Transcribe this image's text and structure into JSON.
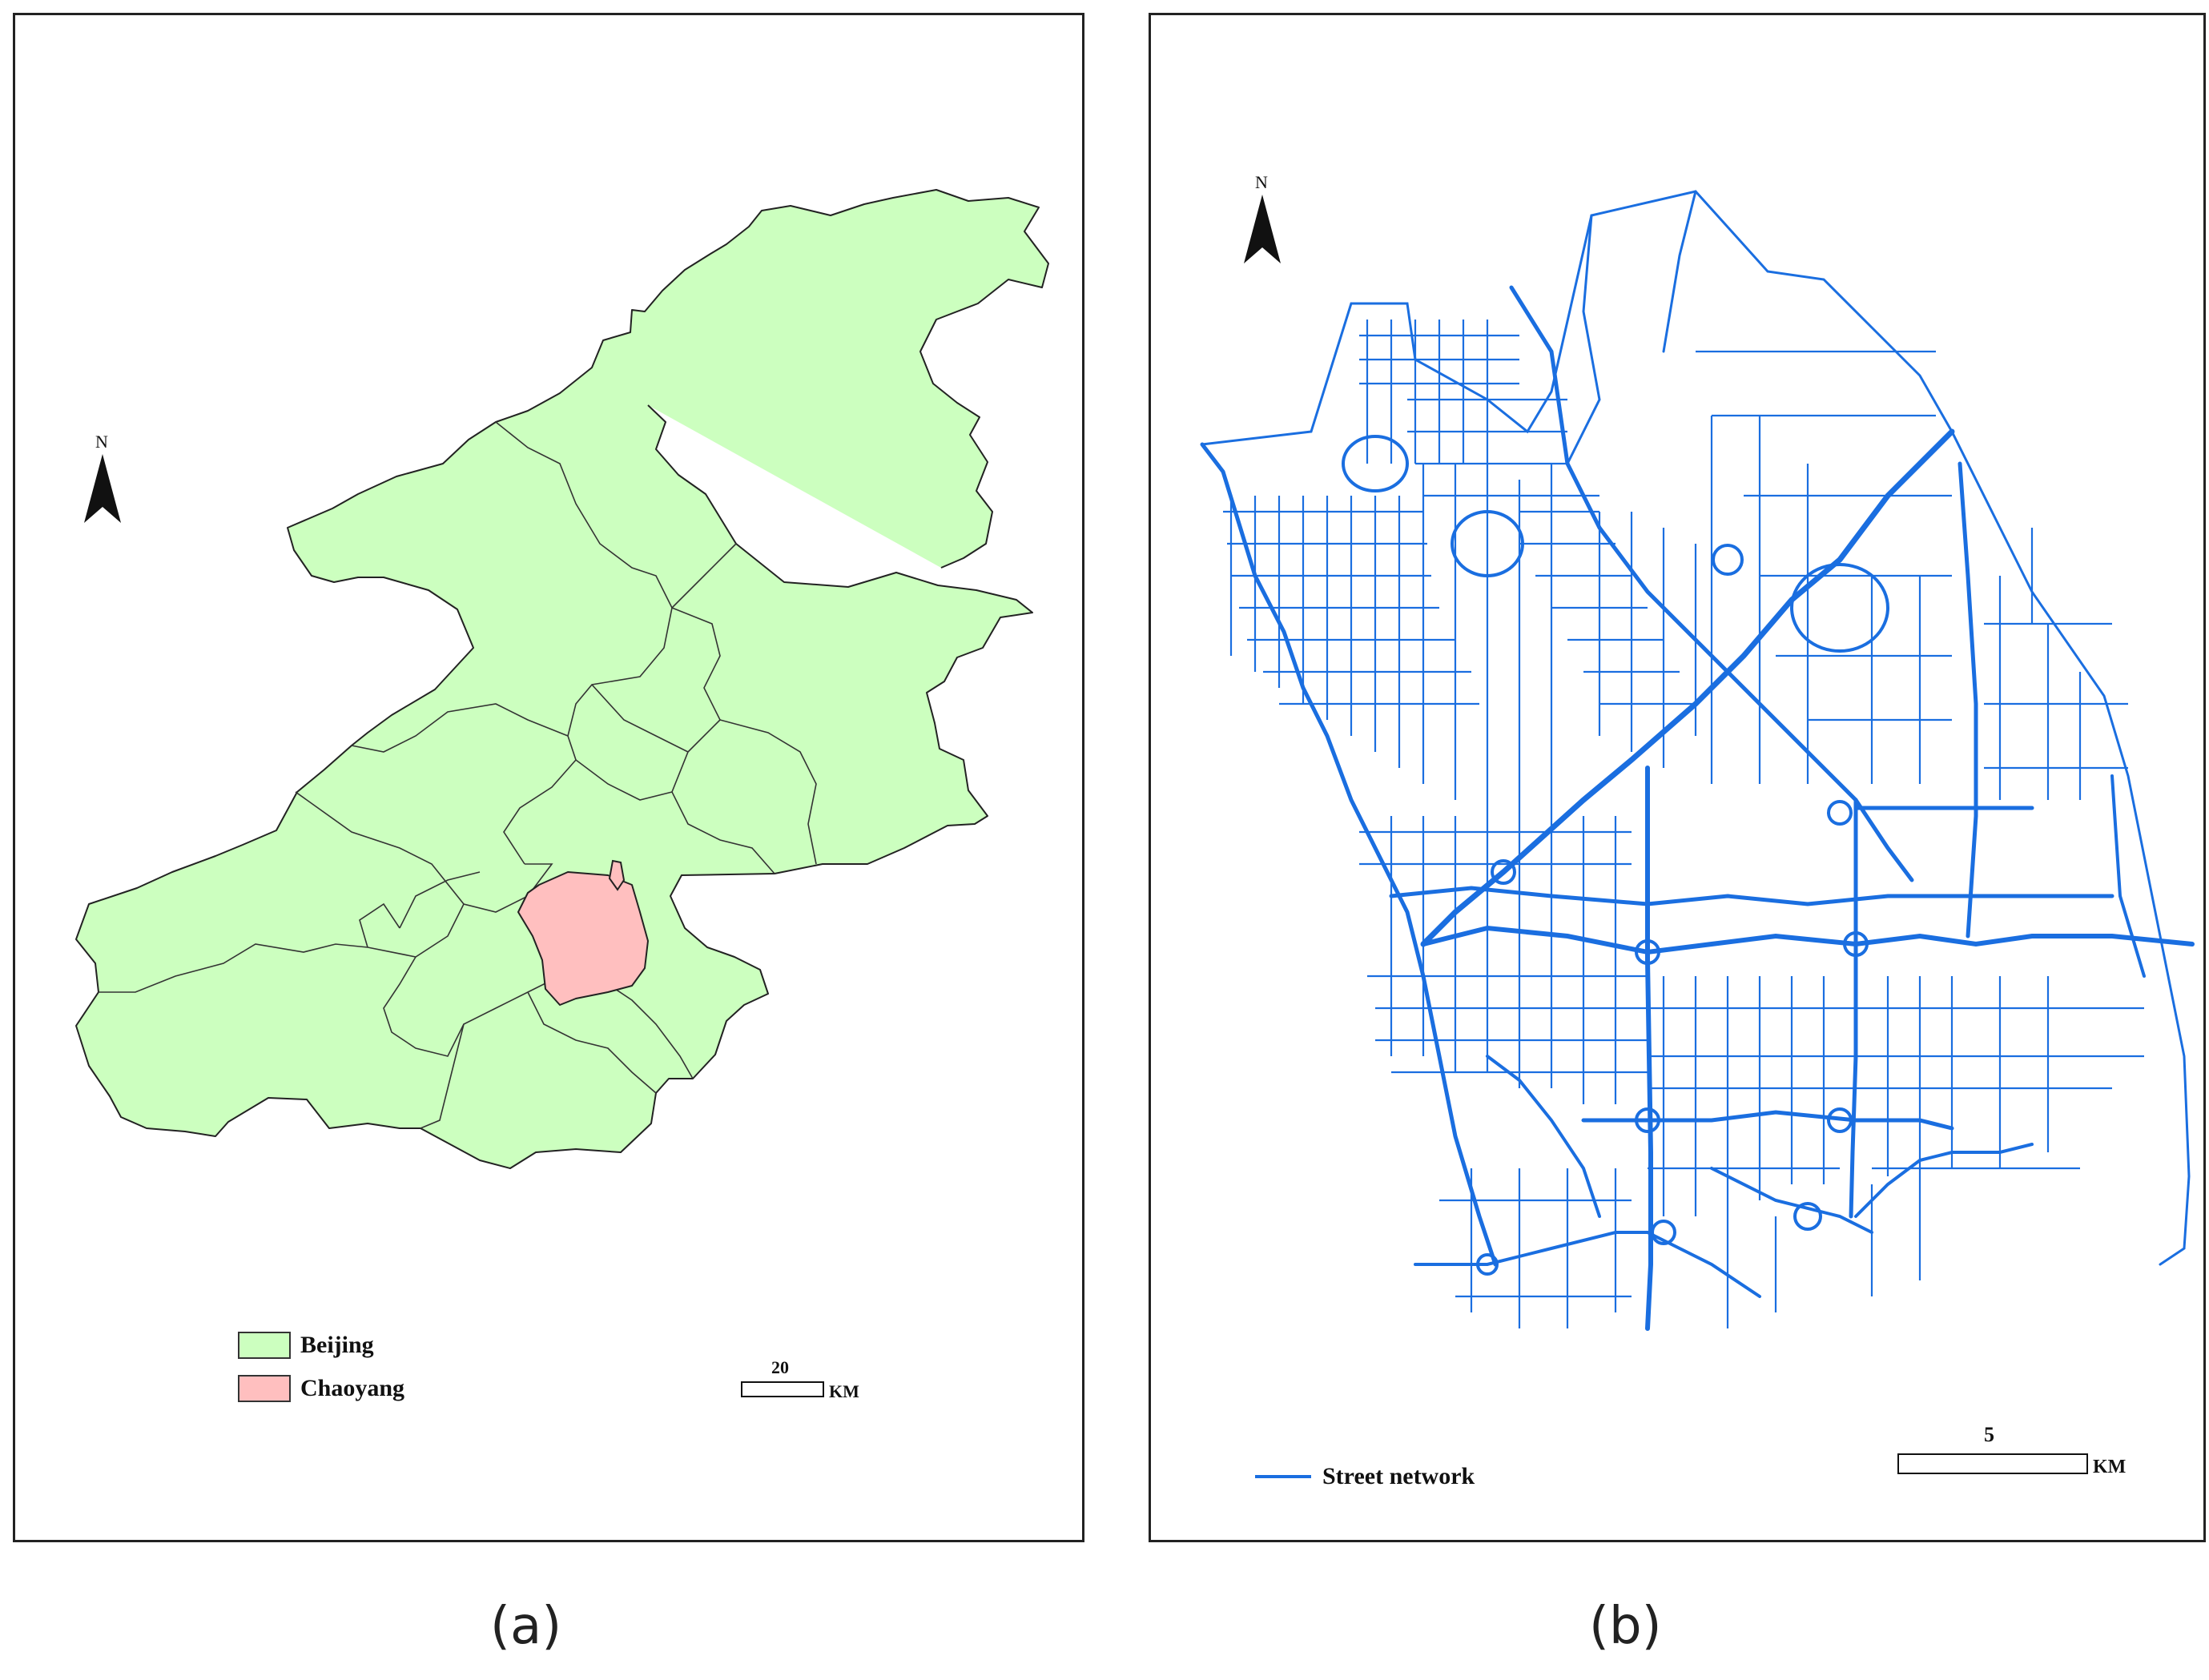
{
  "panel_a": {
    "north_label": "N",
    "legend": [
      {
        "label": "Beijing",
        "color": "#ccffbf"
      },
      {
        "label": "Chaoyang",
        "color": "#ffbfbf"
      }
    ],
    "scale": {
      "value": "20",
      "unit": "KM"
    },
    "caption": "(a)"
  },
  "panel_b": {
    "north_label": "N",
    "legend": {
      "label": "Street network",
      "color": "#1a6ee0"
    },
    "scale": {
      "value": "5",
      "unit": "KM"
    },
    "caption": "(b)"
  },
  "colors": {
    "border": "#333333",
    "street": "#1a6ee0"
  }
}
